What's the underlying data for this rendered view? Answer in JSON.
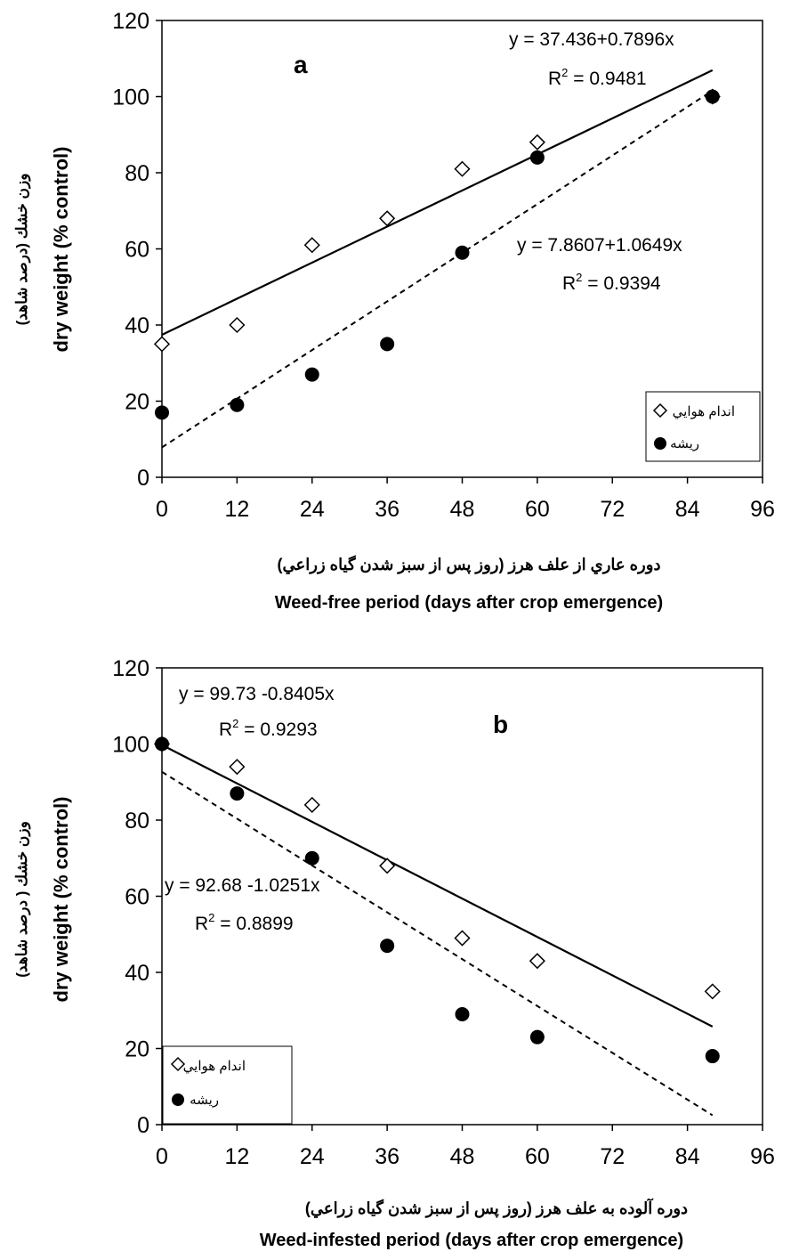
{
  "chart_data": [
    {
      "type": "scatter",
      "panel_label": "a",
      "xticks": [
        0,
        12,
        24,
        36,
        48,
        60,
        72,
        84,
        96
      ],
      "yticks": [
        0,
        20,
        40,
        60,
        80,
        100,
        120
      ],
      "xlim": [
        0,
        96
      ],
      "ylim": [
        0,
        120
      ],
      "xlabel_fa": "دوره عاري از علف هرز (روز پس از سبز شدن گياه زراعي)",
      "xlabel": "Weed-free period (days after crop emergence)",
      "ylabel_fa": "وزن خشك (درصد شاهد)",
      "ylabel": "dry weight (% control)",
      "series": [
        {
          "name": "اندام هوايي",
          "marker": "diamond",
          "points": [
            [
              0,
              35
            ],
            [
              12,
              40
            ],
            [
              24,
              61
            ],
            [
              36,
              68
            ],
            [
              48,
              81
            ],
            [
              60,
              88
            ],
            [
              88,
              100
            ]
          ],
          "fit": {
            "intercept": 37.436,
            "slope": 0.7896,
            "x_range": [
              0,
              88
            ],
            "style": "solid"
          },
          "equation": "y = 37.436+0.7896x",
          "r2_value": "0.9481"
        },
        {
          "name": "ريشه",
          "marker": "circle",
          "points": [
            [
              0,
              17
            ],
            [
              12,
              19
            ],
            [
              24,
              27
            ],
            [
              36,
              35
            ],
            [
              48,
              59
            ],
            [
              60,
              84
            ],
            [
              88,
              100
            ]
          ],
          "fit": {
            "intercept": 7.8607,
            "slope": 1.0649,
            "x_range": [
              0,
              88
            ],
            "style": "dashed"
          },
          "equation": "y = 7.8607+1.0649x",
          "r2_value": "0.9394"
        }
      ],
      "legend_position": "bottom-right"
    },
    {
      "type": "scatter",
      "panel_label": "b",
      "xticks": [
        0,
        12,
        24,
        36,
        48,
        60,
        72,
        84,
        96
      ],
      "yticks": [
        0,
        20,
        40,
        60,
        80,
        100,
        120
      ],
      "xlim": [
        0,
        96
      ],
      "ylim": [
        0,
        120
      ],
      "xlabel_fa": "دوره آلوده به علف هرز (روز پس از سبز شدن گياه زراعي)",
      "xlabel": "Weed-infested period (days after crop emergence)",
      "ylabel_fa": "وزن خشك ( درصد شاهد)",
      "ylabel": "dry weight (% control)",
      "series": [
        {
          "name": "اندام هوايي",
          "marker": "diamond",
          "points": [
            [
              0,
              100
            ],
            [
              12,
              94
            ],
            [
              24,
              84
            ],
            [
              36,
              68
            ],
            [
              48,
              49
            ],
            [
              60,
              43
            ],
            [
              88,
              35
            ]
          ],
          "fit": {
            "intercept": 99.73,
            "slope": -0.8405,
            "x_range": [
              0,
              88
            ],
            "style": "solid"
          },
          "equation": "y = 99.73 -0.8405x",
          "r2_value": "0.9293"
        },
        {
          "name": "ريشه",
          "marker": "circle",
          "points": [
            [
              0,
              100
            ],
            [
              12,
              87
            ],
            [
              24,
              70
            ],
            [
              36,
              47
            ],
            [
              48,
              29
            ],
            [
              60,
              23
            ],
            [
              88,
              18
            ]
          ],
          "fit": {
            "intercept": 92.68,
            "slope": -1.0251,
            "x_range": [
              0,
              88
            ],
            "style": "dashed"
          },
          "equation": "y = 92.68 -1.0251x",
          "r2_value": "0.8899"
        }
      ],
      "legend_position": "bottom-left"
    }
  ],
  "r2_prefix": "R",
  "r2_sup": "2",
  "r2_suffix": " = "
}
